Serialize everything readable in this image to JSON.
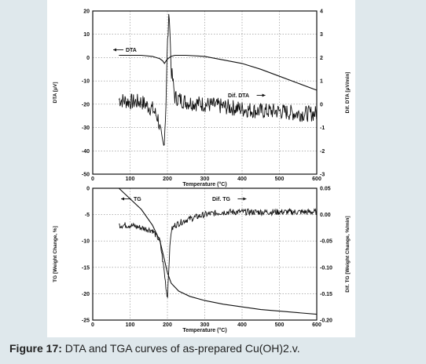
{
  "caption": {
    "label": "Figure 17:",
    "text": " DTA and TGA curves of as-prepared Cu(OH)2.v."
  },
  "colors": {
    "trace": "#111111",
    "grid": "#888888",
    "background": "#dfe8ec"
  },
  "chart_data": [
    {
      "type": "line",
      "title": "",
      "xlabel": "Temperature (°C)",
      "ylabel": "DTA [μV]",
      "y2label": "Dif. DTA [μV/min]",
      "xlim": [
        0,
        600
      ],
      "ylim": [
        -50,
        20
      ],
      "y2lim": [
        -3,
        4
      ],
      "x_ticks": [
        0,
        100,
        200,
        300,
        400,
        500,
        600
      ],
      "y_ticks": [
        20,
        10,
        0,
        -10,
        -20,
        -30,
        -40,
        -50
      ],
      "y2_ticks": [
        4,
        3,
        2,
        1,
        0,
        -1,
        -2,
        -3
      ],
      "grid": true,
      "annotations": [
        "DTA",
        "Dif. DTA"
      ],
      "series": [
        {
          "name": "DTA",
          "axis": "left",
          "x": [
            70,
            100,
            130,
            160,
            180,
            188,
            192,
            198,
            205,
            210,
            220,
            250,
            300,
            350,
            400,
            450,
            500,
            550,
            600
          ],
          "y": [
            1,
            1,
            1,
            0.5,
            -0.5,
            -1.5,
            -2.5,
            -1,
            0,
            0.5,
            1,
            1,
            0.5,
            -1,
            -2.5,
            -5,
            -8,
            -11,
            -14
          ]
        },
        {
          "name": "Dif. DTA",
          "axis": "right",
          "x": [
            70,
            100,
            130,
            160,
            175,
            185,
            190,
            195,
            200,
            205,
            210,
            220,
            250,
            300,
            350,
            400,
            450,
            500,
            550,
            600
          ],
          "y": [
            0.2,
            0.1,
            0.1,
            -0.2,
            -0.6,
            -1.6,
            -1.8,
            -0.5,
            2.5,
            4.0,
            1.5,
            0.3,
            0.1,
            0.0,
            -0.1,
            -0.2,
            -0.3,
            -0.3,
            -0.4,
            -0.4
          ]
        }
      ]
    },
    {
      "type": "line",
      "title": "",
      "xlabel": "Temperature (°C)",
      "ylabel": "TG [Weight Change, %]",
      "y2label": "Dif. TG [Weight Change, %/min]",
      "xlim": [
        0,
        600
      ],
      "ylim": [
        -25,
        0
      ],
      "y2lim": [
        -0.2,
        0.05
      ],
      "x_ticks": [
        0,
        100,
        200,
        300,
        400,
        500,
        600
      ],
      "y_ticks": [
        0,
        -5,
        -10,
        -15,
        -20,
        -25
      ],
      "y2_ticks": [
        0.05,
        0.0,
        -0.05,
        -0.1,
        -0.15,
        -0.2
      ],
      "grid": true,
      "annotations": [
        "TG",
        "Dif. TG"
      ],
      "series": [
        {
          "name": "TG",
          "axis": "left",
          "x": [
            70,
            100,
            130,
            160,
            180,
            190,
            200,
            210,
            230,
            260,
            300,
            350,
            400,
            450,
            500,
            550,
            600
          ],
          "y": [
            0,
            -2,
            -4,
            -7,
            -10,
            -13,
            -16,
            -18,
            -19.5,
            -20.5,
            -21.3,
            -22,
            -22.5,
            -23,
            -23.3,
            -23.6,
            -23.9
          ]
        },
        {
          "name": "Dif. TG",
          "axis": "right",
          "x": [
            70,
            100,
            130,
            160,
            180,
            190,
            195,
            200,
            205,
            210,
            220,
            250,
            300,
            350,
            400,
            450,
            500,
            550,
            600
          ],
          "y": [
            -0.02,
            -0.02,
            -0.025,
            -0.03,
            -0.05,
            -0.1,
            -0.13,
            -0.16,
            -0.08,
            -0.03,
            -0.02,
            -0.01,
            0.0,
            0.005,
            0.005,
            0.005,
            0.005,
            0.005,
            0.005
          ]
        }
      ]
    }
  ]
}
